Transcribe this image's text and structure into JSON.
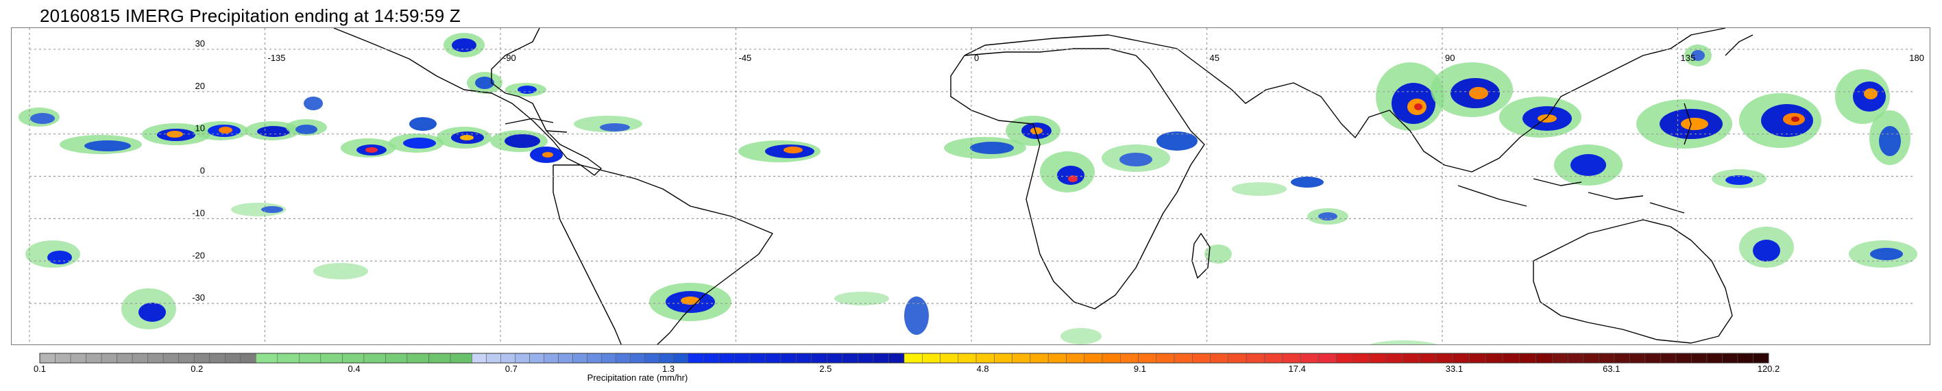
{
  "title": "20160815 IMERG Precipitation ending at 14:59:59 Z",
  "map": {
    "lon_min": -180,
    "lon_max": 180,
    "lat_min": -40,
    "lat_max": 35,
    "lon_labels": [
      -135,
      -90,
      -45,
      0,
      45,
      90,
      135,
      180
    ],
    "lat_labels": [
      30,
      20,
      10,
      0,
      -10,
      -20,
      -30
    ],
    "grid": true
  },
  "colorbar": {
    "label": "Precipitation rate (mm/hr)",
    "tick_labels": [
      "0.1",
      "0.2",
      "0.4",
      "0.7",
      "1.3",
      "2.5",
      "4.8",
      "9.1",
      "17.4",
      "33.1",
      "63.1",
      "120.2"
    ],
    "groups": [
      {
        "colors": [
          "#b4b4b4",
          "#b0b0b0",
          "#ababab",
          "#a6a6a6",
          "#a2a2a2",
          "#9d9d9d",
          "#999999",
          "#959595",
          "#909090",
          "#8c8c8c",
          "#888888",
          "#848484",
          "#808080",
          "#7c7c7c"
        ]
      },
      {
        "colors": [
          "#8fe08f",
          "#8bdd8b",
          "#86d986",
          "#82d682",
          "#7ed27e",
          "#7acf7a",
          "#76cb76",
          "#71c871",
          "#6dc46d",
          "#69c169"
        ]
      },
      {
        "colors": [
          "#c8d4f5",
          "#bccbf2",
          "#b0c2f0",
          "#a4b9ed",
          "#98b0eb",
          "#8ca7e8",
          "#809fe6",
          "#7496e3",
          "#688de1",
          "#5c84de",
          "#507bdc",
          "#4472d9",
          "#3869d7",
          "#2c61d4",
          "#2058d2"
        ]
      },
      {
        "colors": [
          "#0a2ff0",
          "#0a2deb",
          "#0a2be6",
          "#0a29e1",
          "#0a27dc",
          "#0a25d7",
          "#0a23d2",
          "#0a21cd",
          "#0a1fc8",
          "#0a1dc3",
          "#0a1bbe",
          "#0a19b9",
          "#0a17b4",
          "#0a15af"
        ]
      },
      {
        "colors": [
          "#fff200",
          "#ffe800",
          "#ffdd00",
          "#ffd300",
          "#ffc800",
          "#ffbe00",
          "#ffb400",
          "#ffa900",
          "#ff9f00",
          "#ff9500",
          "#ff8a00",
          "#ff8000"
        ]
      },
      {
        "colors": [
          "#ff7a10",
          "#fd7314",
          "#fb6c18",
          "#f9651c",
          "#f75e20",
          "#f55724",
          "#f35028",
          "#f1492c",
          "#ef4230",
          "#ed3b34",
          "#eb3438",
          "#e92d3c"
        ]
      },
      {
        "colors": [
          "#e02020",
          "#d81d1d",
          "#d01a1a",
          "#c81717",
          "#c01414",
          "#b81212",
          "#b01010",
          "#a80e0e",
          "#a00c0c",
          "#980a0a",
          "#900808",
          "#880606",
          "#800505"
        ]
      },
      {
        "colors": [
          "#7a1010",
          "#74100f",
          "#6e0f0e",
          "#680e0d",
          "#620d0c",
          "#5c0c0b",
          "#560b0a",
          "#500a09",
          "#4a0908",
          "#440807",
          "#3e0706",
          "#380605",
          "#320504",
          "#2c0403"
        ]
      }
    ]
  }
}
